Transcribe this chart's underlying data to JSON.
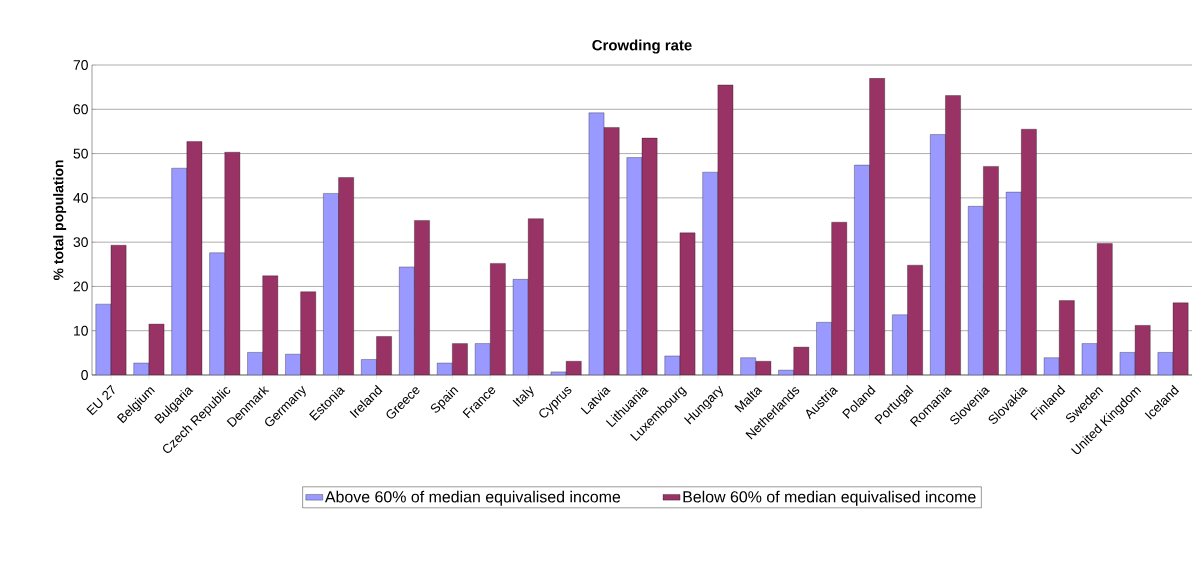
{
  "chart_data": {
    "type": "bar",
    "title": "Crowding rate",
    "ylabel": "% total population",
    "categories": [
      "EU 27",
      "Belgium",
      "Bulgaria",
      "Czech Republic",
      "Denmark",
      "Germany",
      "Estonia",
      "Ireland",
      "Greece",
      "Spain",
      "France",
      "Italy",
      "Cyprus",
      "Latvia",
      "Lithuania",
      "Luxembourg",
      "Hungary",
      "Malta",
      "Netherlands",
      "Austria",
      "Poland",
      "Portugal",
      "Romania",
      "Slovenia",
      "Slovakia",
      "Finland",
      "Sweden",
      "United Kingdom",
      "Iceland"
    ],
    "series": [
      {
        "name": "Above 60% of median equivalised income",
        "color": "#9999ff",
        "values": [
          16,
          2.7,
          46.7,
          27.6,
          5.1,
          4.7,
          41,
          3.5,
          24.4,
          2.7,
          7.1,
          21.6,
          0.7,
          59.2,
          49.1,
          4.3,
          45.8,
          3.9,
          1.1,
          11.9,
          47.4,
          13.6,
          54.3,
          38.1,
          41.3,
          3.9,
          7.1,
          5.1,
          5.1
        ]
      },
      {
        "name": "Below 60% of median equivalised income",
        "color": "#993366",
        "values": [
          29.3,
          11.5,
          52.7,
          50.3,
          22.4,
          18.8,
          44.6,
          8.7,
          34.9,
          7.1,
          25.2,
          35.3,
          3.1,
          55.9,
          53.5,
          32.1,
          65.5,
          3.1,
          6.3,
          34.5,
          67,
          24.8,
          63.1,
          47.1,
          55.5,
          16.8,
          29.7,
          11.2,
          16.3
        ]
      }
    ],
    "ylim": [
      0,
      70
    ],
    "yticks": [
      0,
      10,
      20,
      30,
      40,
      50,
      60,
      70
    ],
    "grid": "y",
    "legend": "bottom"
  }
}
